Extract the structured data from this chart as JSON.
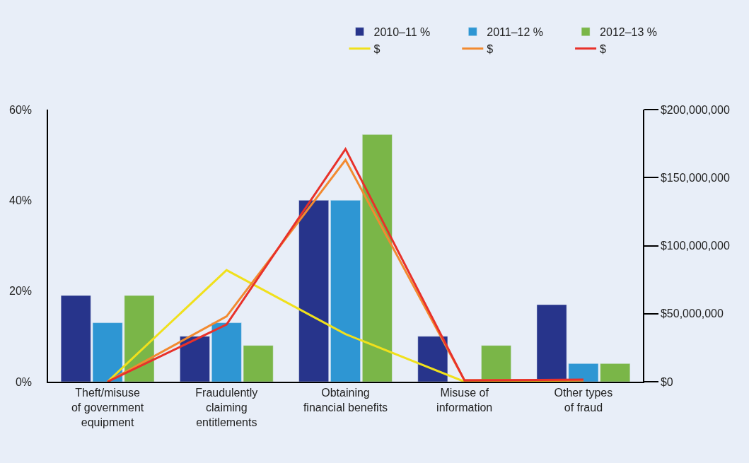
{
  "chart_data": {
    "type": "bar",
    "categories": [
      "Theft/misuse\nof government\nequipment",
      "Fraudulently\nclaiming\nentitlements",
      "Obtaining\nfinancial benefits",
      "Misuse of\ninformation",
      "Other types\nof fraud"
    ],
    "series": [
      {
        "name": "2010–11 %",
        "color": "#27348b",
        "values": [
          19,
          10,
          40,
          10,
          17
        ]
      },
      {
        "name": "2011–12 %",
        "color": "#2e96d3",
        "values": [
          13,
          13,
          40,
          null,
          4
        ]
      },
      {
        "name": "2012–13 %",
        "color": "#7ab648",
        "values": [
          19,
          8,
          54.5,
          8,
          4
        ]
      },
      {
        "name": "$",
        "type": "line",
        "axis": "y2",
        "color": "#f0e01c",
        "values": [
          0,
          82000000,
          35000000,
          0,
          1000000
        ]
      },
      {
        "name": "$",
        "type": "line",
        "axis": "y2",
        "color": "#f28a30",
        "values": [
          0,
          48000000,
          163000000,
          1000000,
          1000000
        ]
      },
      {
        "name": "$",
        "type": "line",
        "axis": "y2",
        "color": "#e8312a",
        "values": [
          0,
          42000000,
          171000000,
          1000000,
          1500000
        ]
      }
    ],
    "ylim": [
      0,
      60
    ],
    "yticks": [
      {
        "value": 0,
        "label": "0%"
      },
      {
        "value": 20,
        "label": "20%"
      },
      {
        "value": 40,
        "label": "40%"
      },
      {
        "value": 60,
        "label": "60%"
      }
    ],
    "y2lim": [
      0,
      200000000
    ],
    "y2ticks": [
      {
        "value": 0,
        "label": "$0"
      },
      {
        "value": 50000000,
        "label": "$50,000,000"
      },
      {
        "value": 100000000,
        "label": "$100,000,000"
      },
      {
        "value": 150000000,
        "label": "$150,000,000"
      },
      {
        "value": 200000000,
        "label": "$200,000,000"
      }
    ],
    "grid": false,
    "legend": "top right",
    "marker": "none",
    "line_style": "solid"
  }
}
